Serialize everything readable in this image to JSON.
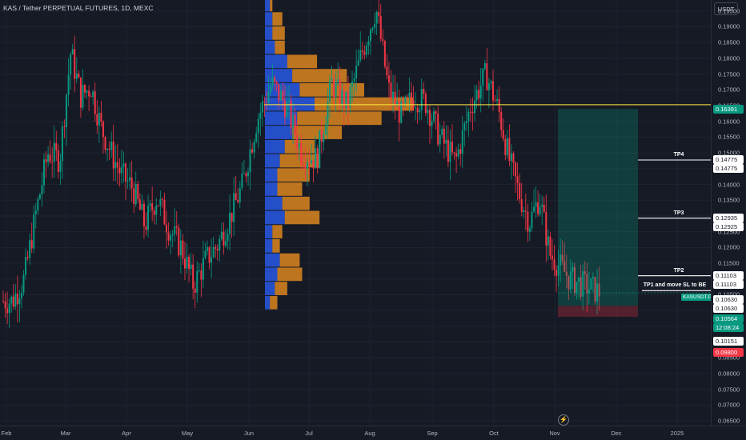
{
  "header": {
    "title": "KAS / Tether PERPETUAL FUTURES, 1D, MEXC"
  },
  "price_scale": {
    "currency": "USDT",
    "ticks": [
      "0.19500",
      "0.19000",
      "0.18500",
      "0.18000",
      "0.17500",
      "0.17000",
      "0.16500",
      "0.16000",
      "0.15500",
      "0.15000",
      "0.14500",
      "0.14000",
      "0.13500",
      "0.13000",
      "0.12500",
      "0.12000",
      "0.11500",
      "0.11000",
      "0.10500",
      "0.10000",
      "0.09500",
      "0.09000",
      "0.08500",
      "0.08000",
      "0.07500",
      "0.07000",
      "0.06500"
    ]
  },
  "badges": [
    {
      "text": "0.16391",
      "style": "green",
      "price": 0.16391
    },
    {
      "text": "0.14775",
      "style": "white",
      "price": 0.14775
    },
    {
      "text": "0.14775",
      "style": "white",
      "price": 0.14775
    },
    {
      "text": "0.12935",
      "style": "white",
      "price": 0.12935
    },
    {
      "text": "0.12925",
      "style": "white",
      "price": 0.12925
    },
    {
      "text": "0.11103",
      "style": "white",
      "price": 0.11103
    },
    {
      "text": "0.11103",
      "style": "white",
      "price": 0.11103
    },
    {
      "text": "0.10630",
      "style": "white",
      "price": 0.1063
    },
    {
      "text": "0.10630",
      "style": "white",
      "price": 0.1063
    },
    {
      "text": "0.10564",
      "style": "green",
      "price": 0.10564
    },
    {
      "text": "12:08:24",
      "style": "green",
      "price": 0.10564
    },
    {
      "text": "0.10151",
      "style": "white",
      "price": 0.10151
    },
    {
      "text": "0.09800",
      "style": "red",
      "price": 0.098
    }
  ],
  "symbol_tag": "KASUSDT.P",
  "targets": [
    {
      "label": "TP4",
      "price": 0.14775
    },
    {
      "label": "TP3",
      "price": 0.1293
    },
    {
      "label": "TP2",
      "price": 0.11103
    },
    {
      "label": "TP1 and move SL to BE",
      "price": 0.1063
    }
  ],
  "horizontal_line_price": 0.1653,
  "position": {
    "entry": 0.10151,
    "take_profit": 0.16391,
    "stop": 0.098
  },
  "time_axis": {
    "labels": [
      "Feb",
      "Mar",
      "Apr",
      "May",
      "Jun",
      "Jul",
      "Aug",
      "Sep",
      "Oct",
      "Nov",
      "Dec",
      "2025"
    ]
  },
  "colors": {
    "up": "#089981",
    "down": "#f23645",
    "profile_blue": "#2962ff",
    "profile_orange": "#f7941d",
    "level_line": "#ffeb3b"
  },
  "chart_data": {
    "type": "candlestick",
    "title": "KAS / Tether PERPETUAL FUTURES, 1D, MEXC",
    "ylim": [
      0.0635,
      0.1985
    ],
    "x": [
      "Feb",
      "Mar",
      "Apr",
      "May",
      "Jun",
      "Jul",
      "Aug",
      "Sep",
      "Oct",
      "Nov",
      "Dec",
      "2025"
    ],
    "close_path": [
      [
        "Feb",
        0.103
      ],
      [
        "Feb",
        0.11
      ],
      [
        "Feb",
        0.131
      ],
      [
        "Feb",
        0.15
      ],
      [
        "Feb",
        0.148
      ],
      [
        "Mar",
        0.182
      ],
      [
        "Mar",
        0.168
      ],
      [
        "Mar",
        0.171
      ],
      [
        "Mar",
        0.158
      ],
      [
        "Mar",
        0.15
      ],
      [
        "Mar",
        0.143
      ],
      [
        "Apr",
        0.139
      ],
      [
        "Apr",
        0.127
      ],
      [
        "Apr",
        0.136
      ],
      [
        "Apr",
        0.126
      ],
      [
        "Apr",
        0.12
      ],
      [
        "May",
        0.108
      ],
      [
        "May",
        0.116
      ],
      [
        "May",
        0.121
      ],
      [
        "May",
        0.13
      ],
      [
        "May",
        0.14
      ],
      [
        "Jun",
        0.16
      ],
      [
        "Jun",
        0.172
      ],
      [
        "Jun",
        0.165
      ],
      [
        "Jun",
        0.15
      ],
      [
        "Jul",
        0.148
      ],
      [
        "Jul",
        0.172
      ],
      [
        "Jul",
        0.165
      ],
      [
        "Jul",
        0.182
      ],
      [
        "Aug",
        0.196
      ],
      [
        "Aug",
        0.17
      ],
      [
        "Aug",
        0.162
      ],
      [
        "Aug",
        0.168
      ],
      [
        "Aug",
        0.166
      ],
      [
        "Sep",
        0.155
      ],
      [
        "Sep",
        0.147
      ],
      [
        "Sep",
        0.165
      ],
      [
        "Sep",
        0.175
      ],
      [
        "Oct",
        0.163
      ],
      [
        "Oct",
        0.148
      ],
      [
        "Oct",
        0.137
      ],
      [
        "Oct",
        0.128
      ],
      [
        "Oct",
        0.136
      ],
      [
        "Oct",
        0.118
      ],
      [
        "Nov",
        0.11
      ],
      [
        "Nov",
        0.1056
      ]
    ],
    "volume_profile_units": "relative",
    "volume_profile": [
      {
        "price": 0.197,
        "blue": 2,
        "orange": 1
      },
      {
        "price": 0.1925,
        "blue": 3,
        "orange": 4
      },
      {
        "price": 0.188,
        "blue": 3,
        "orange": 5
      },
      {
        "price": 0.1835,
        "blue": 4,
        "orange": 4
      },
      {
        "price": 0.179,
        "blue": 9,
        "orange": 12
      },
      {
        "price": 0.1745,
        "blue": 11,
        "orange": 22
      },
      {
        "price": 0.17,
        "blue": 14,
        "orange": 26
      },
      {
        "price": 0.1655,
        "blue": 20,
        "orange": 40
      },
      {
        "price": 0.161,
        "blue": 13,
        "orange": 34
      },
      {
        "price": 0.1565,
        "blue": 11,
        "orange": 20
      },
      {
        "price": 0.152,
        "blue": 8,
        "orange": 12
      },
      {
        "price": 0.1475,
        "blue": 6,
        "orange": 16
      },
      {
        "price": 0.143,
        "blue": 5,
        "orange": 13
      },
      {
        "price": 0.1385,
        "blue": 5,
        "orange": 10
      },
      {
        "price": 0.134,
        "blue": 7,
        "orange": 11
      },
      {
        "price": 0.1295,
        "blue": 8,
        "orange": 14
      },
      {
        "price": 0.125,
        "blue": 3,
        "orange": 4
      },
      {
        "price": 0.1205,
        "blue": 3,
        "orange": 3
      },
      {
        "price": 0.116,
        "blue": 6,
        "orange": 8
      },
      {
        "price": 0.1115,
        "blue": 5,
        "orange": 10
      },
      {
        "price": 0.107,
        "blue": 4,
        "orange": 5
      },
      {
        "price": 0.1025,
        "blue": 2,
        "orange": 3
      }
    ]
  }
}
